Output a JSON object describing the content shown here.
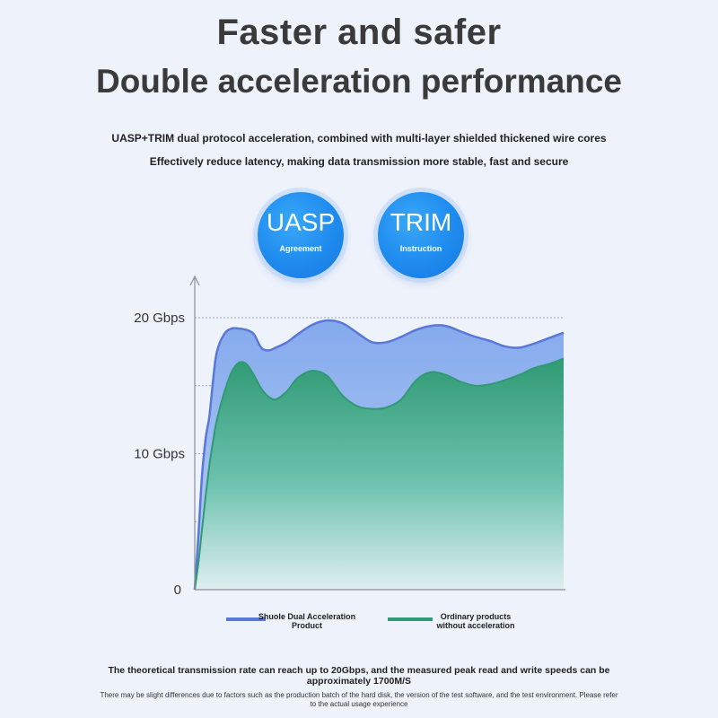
{
  "header": {
    "title_line1": "Faster and safer",
    "title_line2": "Double acceleration performance",
    "subtitle_line1": "UASP+TRIM dual protocol acceleration, combined with multi-layer shielded thickened wire cores",
    "subtitle_line2": "Effectively reduce latency, making data transmission more stable, fast and secure"
  },
  "badges": [
    {
      "label": "UASP",
      "sublabel": "Agreement"
    },
    {
      "label": "TRIM",
      "sublabel": "Instruction"
    }
  ],
  "chart_data": {
    "type": "area",
    "title": "",
    "xlabel": "",
    "ylabel": "",
    "y_tick_labels": [
      "20 Gbps",
      "10 Gbps",
      "0"
    ],
    "ylim": [
      0,
      22
    ],
    "xlim": [
      0,
      100
    ],
    "grid": "dotted horizontal lines",
    "legend_position": "bottom",
    "colors": {
      "series1": "#5b77d8",
      "series2": "#2f9a74",
      "series1_fill": "#8fb3ee",
      "series2_fill": "#3fae8f"
    },
    "series": [
      {
        "name": "Shuole Dual Acceleration Product",
        "x": [
          0,
          1,
          2,
          3,
          4,
          5,
          6,
          8,
          10,
          12,
          14,
          16,
          18,
          20,
          22,
          25,
          28,
          32,
          36,
          40,
          44,
          48,
          52,
          56,
          60,
          64,
          68,
          72,
          76,
          80,
          84,
          88,
          92,
          96,
          100
        ],
        "values": [
          0,
          4,
          8.5,
          11.2,
          12.8,
          15.5,
          17.5,
          18.8,
          19.2,
          19.2,
          19.1,
          18.8,
          17.8,
          17.6,
          17.8,
          18.2,
          18.8,
          19.5,
          19.8,
          19.6,
          18.9,
          18.2,
          18.2,
          18.6,
          19.1,
          19.4,
          19.4,
          19.0,
          18.6,
          18.3,
          17.9,
          17.8,
          18.1,
          18.5,
          18.9
        ]
      },
      {
        "name": "Ordinary products without acceleration",
        "x": [
          0,
          1,
          2,
          3,
          4,
          5,
          6,
          8,
          10,
          12,
          14,
          16,
          18,
          20,
          22,
          25,
          28,
          32,
          36,
          40,
          44,
          48,
          52,
          56,
          60,
          64,
          68,
          72,
          76,
          80,
          84,
          88,
          92,
          96,
          100
        ],
        "values": [
          0,
          2,
          4.5,
          7,
          9.2,
          11,
          12.5,
          14.5,
          16,
          16.7,
          16.6,
          15.8,
          14.8,
          14.2,
          14,
          14.6,
          15.6,
          16.1,
          15.7,
          14.3,
          13.5,
          13.3,
          13.4,
          14,
          15.4,
          16,
          15.8,
          15.3,
          15.0,
          15.1,
          15.4,
          15.8,
          16.3,
          16.6,
          17.0
        ]
      }
    ]
  },
  "footer": {
    "note_main": "The theoretical transmission rate can reach up to 20Gbps, and the measured peak read and write speeds can be approximately 1700M/S",
    "note_small": "There may be slight differences due to factors such as the production batch of the hard disk, the version of the test software, and the test environment. Please refer to the actual usage experience"
  }
}
